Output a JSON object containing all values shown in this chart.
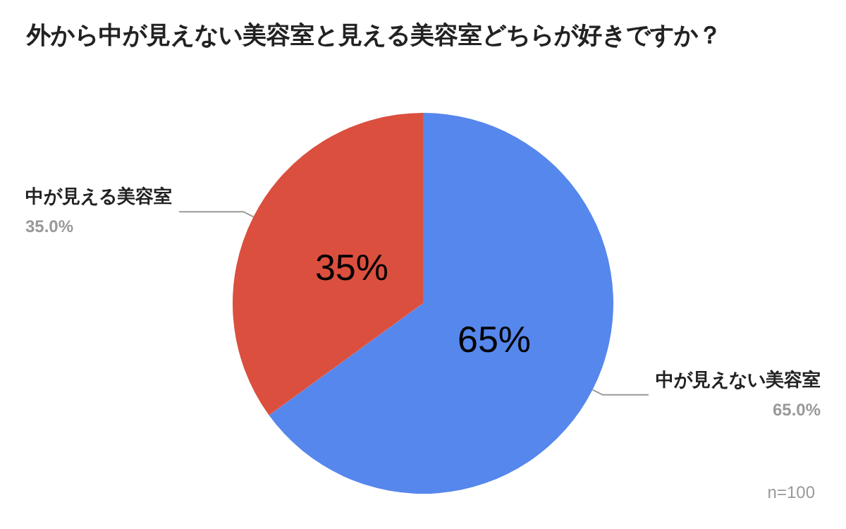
{
  "chart_data": {
    "type": "pie",
    "title": "外から中が見えない美容室と見える美容室どちらが好きですか？",
    "categories": [
      "中が見えない美容室",
      "中が見える美容室"
    ],
    "values": [
      65,
      35
    ],
    "value_labels": [
      "65.0%",
      "35.0%"
    ],
    "colors": [
      "#5687ec",
      "#db4f3f"
    ],
    "legend": false,
    "annotations": [
      {
        "text": "65%",
        "x": "中が見えない美容室"
      },
      {
        "text": "35%",
        "x": "中が見える美容室"
      },
      "n=100"
    ]
  }
}
